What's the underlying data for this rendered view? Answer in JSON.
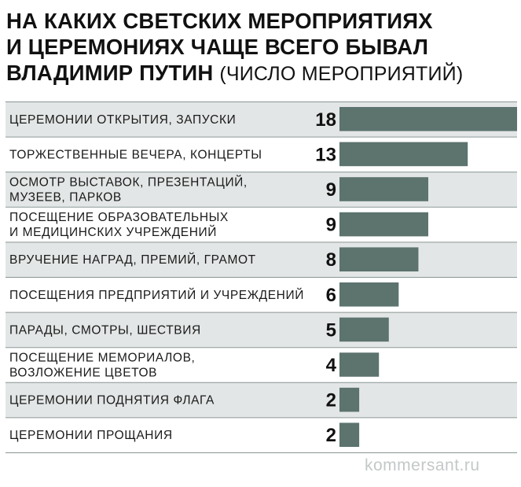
{
  "title": {
    "line1": "НА КАКИХ СВЕТСКИХ МЕРОПРИЯТИЯХ",
    "line2": "И ЦЕРЕМОНИЯХ ЧАЩЕ ВСЕГО БЫВАЛ",
    "line3": "ВЛАДИМИР ПУТИН",
    "subtitle": "(ЧИСЛО МЕРОПРИЯТИЙ)"
  },
  "watermark": "kommersant.ru",
  "colors": {
    "bar": "#5c736e",
    "row_shaded": "#e3e6e6",
    "divider": "#8a9695"
  },
  "chart_data": {
    "type": "bar",
    "orientation": "horizontal",
    "categories": [
      [
        "ЦЕРЕМОНИИ ОТКРЫТИЯ, ЗАПУСКИ"
      ],
      [
        "ТОРЖЕСТВЕННЫЕ ВЕЧЕРА, КОНЦЕРТЫ"
      ],
      [
        "ОСМОТР ВЫСТАВОК, ПРЕЗЕНТАЦИЙ,",
        "МУЗЕЕВ, ПАРКОВ"
      ],
      [
        "ПОСЕЩЕНИЕ ОБРАЗОВАТЕЛЬНЫХ",
        "И МЕДИЦИНСКИХ УЧРЕЖДЕНИЙ"
      ],
      [
        "ВРУЧЕНИЕ НАГРАД, ПРЕМИЙ, ГРАМОТ"
      ],
      [
        "ПОСЕЩЕНИЯ ПРЕДПРИЯТИЙ И УЧРЕЖДЕНИЙ"
      ],
      [
        "ПАРАДЫ, СМОТРЫ, ШЕСТВИЯ"
      ],
      [
        "ПОСЕЩЕНИЕ МЕМОРИАЛОВ,",
        "ВОЗЛОЖЕНИЕ ЦВЕТОВ"
      ],
      [
        "ЦЕРЕМОНИИ ПОДНЯТИЯ ФЛАГА"
      ],
      [
        "ЦЕРЕМОНИИ ПРОЩАНИЯ"
      ]
    ],
    "values": [
      18,
      13,
      9,
      9,
      8,
      6,
      5,
      4,
      2,
      2
    ],
    "xlim": [
      0,
      18
    ],
    "grid": false,
    "legend": "none"
  }
}
